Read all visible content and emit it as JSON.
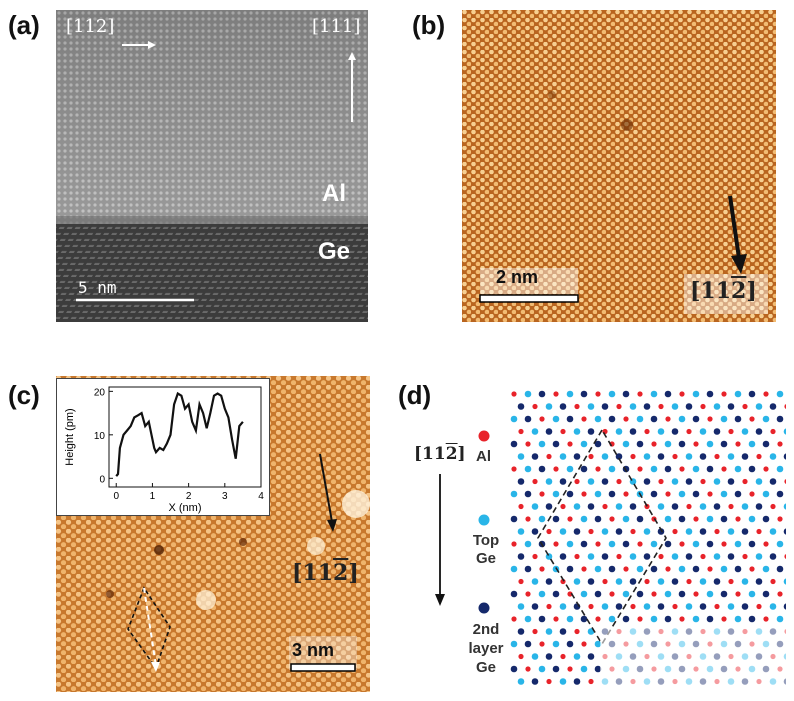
{
  "panels": [
    {
      "label": "(a)",
      "dir_left": "[112]",
      "dir_right": "[111]",
      "layer_top": "Al",
      "layer_bottom": "Ge",
      "scale": "5 nm"
    },
    {
      "label": "(b)",
      "scale": "2 nm",
      "direction_base": "[11",
      "direction_bar": "2",
      "direction_close": "]"
    },
    {
      "label": "(c)",
      "scale": "3 nm",
      "direction_base": "[11",
      "direction_bar": "2",
      "direction_close": "]"
    },
    {
      "label": "(d)",
      "direction_base": "[11",
      "direction_bar": "2",
      "direction_close": "]",
      "legend": [
        "Al",
        "Top Ge",
        "2nd layer Ge"
      ],
      "legend_colors": [
        "#e8232a",
        "#29b5e8",
        "#15296b"
      ]
    }
  ],
  "chart_data": {
    "type": "line",
    "title": "",
    "xlabel": "X (nm)",
    "ylabel": "Height (pm)",
    "xlim": [
      -0.2,
      4
    ],
    "ylim": [
      -2,
      21
    ],
    "xticks": [
      0,
      1,
      2,
      3,
      4
    ],
    "yticks": [
      0,
      10,
      20
    ],
    "series": [
      {
        "x": [
          0.0,
          0.05,
          0.1,
          0.2,
          0.3,
          0.4,
          0.5,
          0.6,
          0.7,
          0.8,
          0.9,
          1.0,
          1.05,
          1.1,
          1.2,
          1.3,
          1.4,
          1.5,
          1.6,
          1.7,
          1.8,
          1.9,
          2.0,
          2.1,
          2.2,
          2.3,
          2.4,
          2.5,
          2.6,
          2.7,
          2.8,
          2.9,
          3.0,
          3.1,
          3.2,
          3.3,
          3.4,
          3.5
        ],
        "y": [
          0.5,
          1.0,
          7,
          10,
          11,
          12,
          14,
          14.5,
          15,
          12,
          13,
          9,
          7,
          6,
          7,
          6.5,
          8,
          10,
          17,
          19.5,
          19,
          16,
          17,
          13,
          11,
          17,
          15,
          11.5,
          15,
          19,
          19.5,
          19,
          16,
          14,
          9,
          4.5,
          12,
          13
        ]
      }
    ]
  }
}
